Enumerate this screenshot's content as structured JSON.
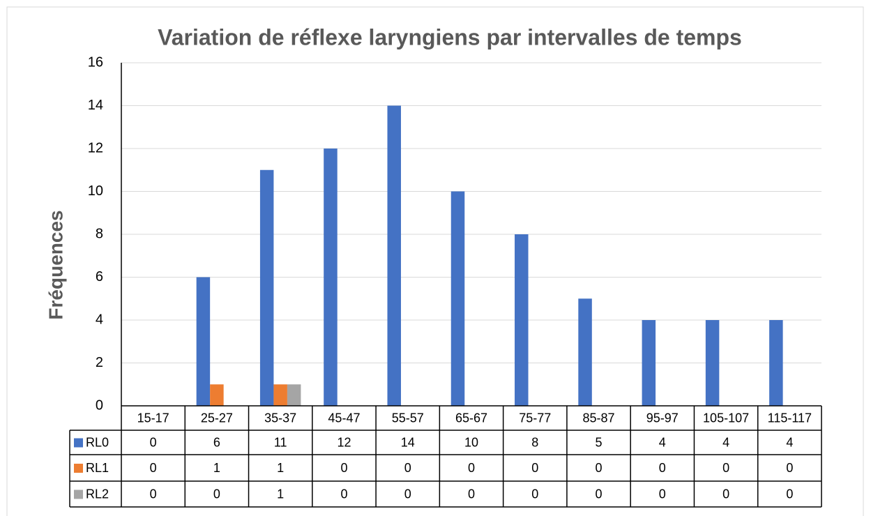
{
  "chart_data": {
    "type": "bar",
    "title": "Variation de réflexe laryngiens par intervalles de temps",
    "y_label": "Fréquences",
    "categories": [
      "15-17",
      "25-27",
      "35-37",
      "45-47",
      "55-57",
      "65-67",
      "75-77",
      "85-87",
      "95-97",
      "105-107",
      "115-117"
    ],
    "series": [
      {
        "name": "RL0",
        "color": "#4472c4",
        "values": [
          0,
          6,
          11,
          12,
          14,
          10,
          8,
          5,
          4,
          4,
          4
        ]
      },
      {
        "name": "RL1",
        "color": "#ed7d31",
        "values": [
          0,
          1,
          1,
          0,
          0,
          0,
          0,
          0,
          0,
          0,
          0
        ]
      },
      {
        "name": "RL2",
        "color": "#a5a5a5",
        "values": [
          0,
          0,
          1,
          0,
          0,
          0,
          0,
          0,
          0,
          0,
          0
        ]
      }
    ],
    "ylim": [
      0,
      16
    ],
    "yticks": [
      0,
      2,
      4,
      6,
      8,
      10,
      12,
      14,
      16
    ],
    "grid": true,
    "data_table": true
  }
}
